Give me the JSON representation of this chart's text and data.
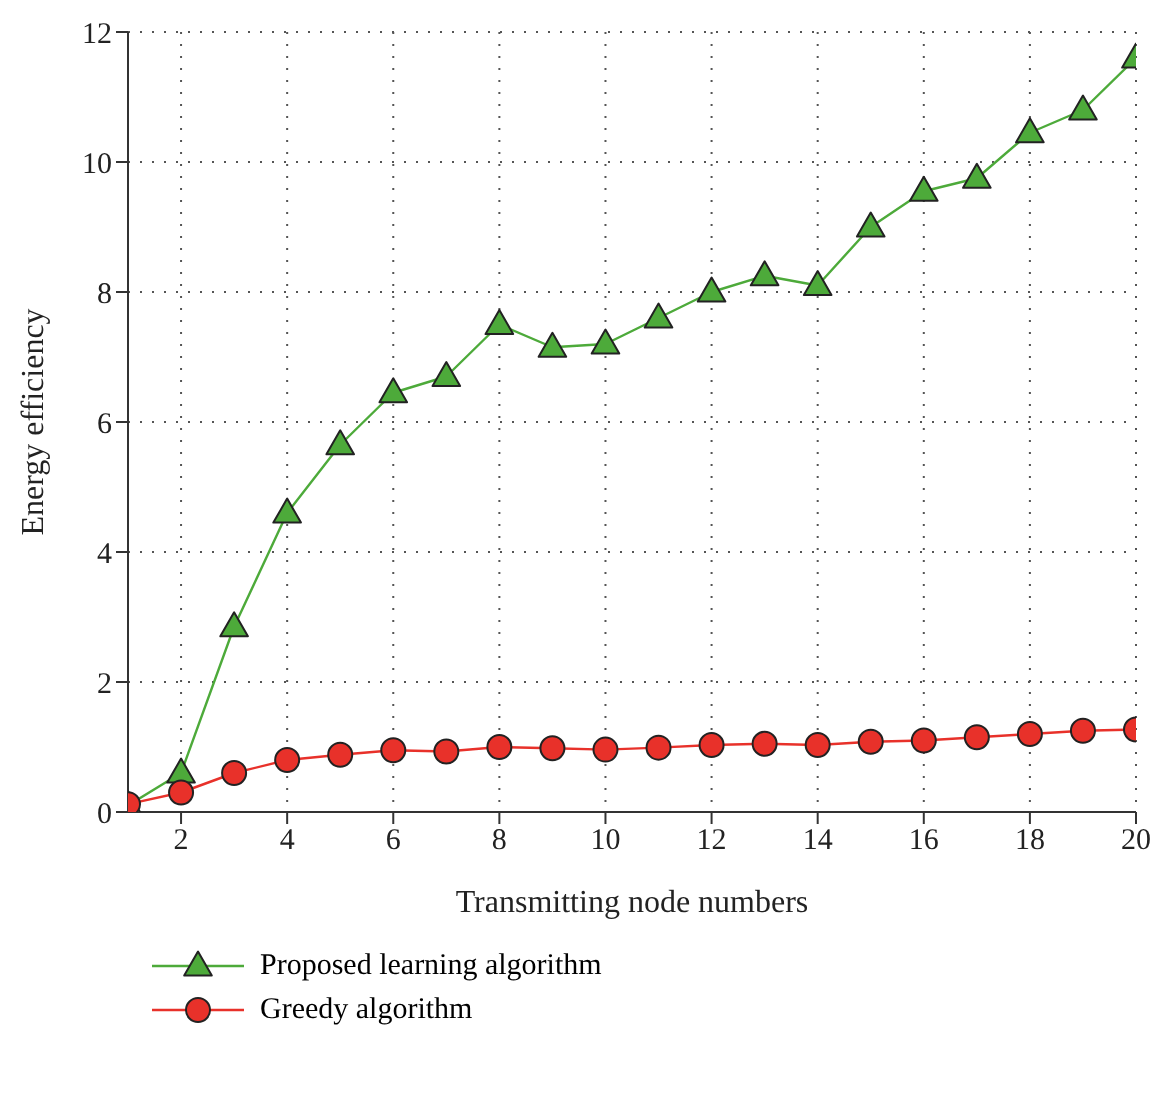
{
  "chart_data": {
    "type": "line",
    "xlabel": "Transmitting node numbers",
    "ylabel": "Energy efficiency",
    "x": [
      1,
      2,
      3,
      4,
      5,
      6,
      7,
      8,
      9,
      10,
      11,
      12,
      13,
      14,
      15,
      16,
      17,
      18,
      19,
      20
    ],
    "xlim": [
      1,
      20
    ],
    "xticks": [
      2,
      4,
      6,
      8,
      10,
      12,
      14,
      16,
      18,
      20
    ],
    "ylim": [
      0,
      12
    ],
    "yticks": [
      0,
      2,
      4,
      6,
      8,
      10,
      12
    ],
    "grid": true,
    "legend": "bottom",
    "series": [
      {
        "name": "Proposed learning algorithm",
        "color": "#4daa3a",
        "marker": "triangle",
        "values": [
          0.1,
          0.6,
          2.85,
          4.6,
          5.65,
          6.45,
          6.7,
          7.5,
          7.15,
          7.2,
          7.6,
          8.0,
          8.25,
          8.1,
          9.0,
          9.55,
          9.75,
          10.45,
          10.8,
          11.6
        ]
      },
      {
        "name": "Greedy algorithm",
        "color": "#e8312a",
        "marker": "circle",
        "values": [
          0.12,
          0.3,
          0.6,
          0.8,
          0.88,
          0.95,
          0.93,
          1.0,
          0.98,
          0.96,
          0.99,
          1.03,
          1.05,
          1.03,
          1.08,
          1.1,
          1.15,
          1.2,
          1.25,
          1.27
        ]
      }
    ]
  }
}
